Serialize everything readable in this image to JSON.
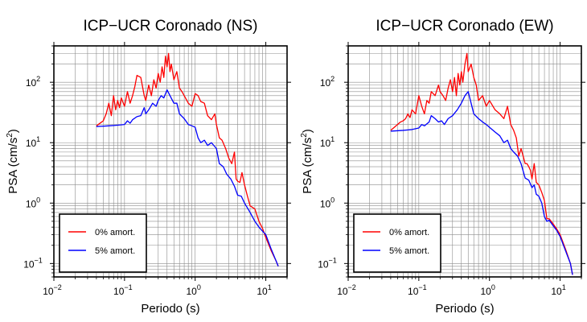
{
  "chart_data": [
    {
      "type": "line",
      "title": "ICP−UCR Coronado (NS)",
      "xlabel": "Periodo (s)",
      "ylabel": "PSA (cm/s²)",
      "xscale": "log",
      "yscale": "log",
      "xlim": [
        0.01,
        20
      ],
      "ylim": [
        0.06,
        400
      ],
      "grid": true,
      "legend_position": "bottom-left",
      "x_ticks": [
        {
          "value": 0.01,
          "base": "10",
          "exp": "−2"
        },
        {
          "value": 0.1,
          "base": "10",
          "exp": "−1"
        },
        {
          "value": 1,
          "base": "10",
          "exp": "0"
        },
        {
          "value": 10,
          "base": "10",
          "exp": "1"
        }
      ],
      "y_ticks": [
        {
          "value": 0.1,
          "label": "10",
          "exp": "−1"
        },
        {
          "value": 1,
          "label": "10",
          "exp": "0"
        },
        {
          "value": 10,
          "label": "10",
          "exp": "1"
        },
        {
          "value": 100,
          "label": "10",
          "exp": "2"
        }
      ],
      "series": [
        {
          "name": "0% amort.",
          "color": "#ff0000",
          "points": [
            [
              0.04,
              19
            ],
            [
              0.045,
              21
            ],
            [
              0.05,
              23
            ],
            [
              0.055,
              30
            ],
            [
              0.06,
              45
            ],
            [
              0.065,
              28
            ],
            [
              0.07,
              60
            ],
            [
              0.075,
              35
            ],
            [
              0.08,
              50
            ],
            [
              0.085,
              38
            ],
            [
              0.09,
              55
            ],
            [
              0.1,
              40
            ],
            [
              0.11,
              70
            ],
            [
              0.12,
              45
            ],
            [
              0.13,
              60
            ],
            [
              0.14,
              85
            ],
            [
              0.15,
              130
            ],
            [
              0.17,
              120
            ],
            [
              0.19,
              60
            ],
            [
              0.2,
              50
            ],
            [
              0.22,
              90
            ],
            [
              0.24,
              60
            ],
            [
              0.26,
              110
            ],
            [
              0.28,
              80
            ],
            [
              0.3,
              140
            ],
            [
              0.32,
              100
            ],
            [
              0.34,
              180
            ],
            [
              0.36,
              120
            ],
            [
              0.38,
              270
            ],
            [
              0.4,
              180
            ],
            [
              0.42,
              300
            ],
            [
              0.44,
              150
            ],
            [
              0.46,
              200
            ],
            [
              0.5,
              110
            ],
            [
              0.55,
              150
            ],
            [
              0.6,
              80
            ],
            [
              0.65,
              70
            ],
            [
              0.7,
              60
            ],
            [
              0.8,
              45
            ],
            [
              0.9,
              40
            ],
            [
              1.0,
              65
            ],
            [
              1.1,
              60
            ],
            [
              1.2,
              48
            ],
            [
              1.35,
              45
            ],
            [
              1.5,
              28
            ],
            [
              1.7,
              24
            ],
            [
              1.9,
              30
            ],
            [
              2.0,
              20
            ],
            [
              2.2,
              12
            ],
            [
              2.4,
              11
            ],
            [
              2.7,
              8
            ],
            [
              3.0,
              5.5
            ],
            [
              3.3,
              4.5
            ],
            [
              3.6,
              7
            ],
            [
              3.8,
              2.5
            ],
            [
              4.0,
              2.3
            ],
            [
              4.3,
              2.2
            ],
            [
              4.6,
              3.2
            ],
            [
              5.0,
              2.0
            ],
            [
              5.5,
              1.3
            ],
            [
              6.0,
              0.9
            ],
            [
              7.0,
              0.8
            ],
            [
              8.0,
              0.5
            ],
            [
              9.0,
              0.38
            ],
            [
              10,
              0.27
            ],
            [
              12,
              0.16
            ],
            [
              14,
              0.11
            ],
            [
              15,
              0.09
            ]
          ]
        },
        {
          "name": "5% amort.",
          "color": "#0000ff",
          "points": [
            [
              0.04,
              18.5
            ],
            [
              0.06,
              19
            ],
            [
              0.08,
              19.5
            ],
            [
              0.1,
              20
            ],
            [
              0.11,
              23
            ],
            [
              0.12,
              21
            ],
            [
              0.13,
              24
            ],
            [
              0.15,
              27
            ],
            [
              0.17,
              28
            ],
            [
              0.19,
              38
            ],
            [
              0.2,
              30
            ],
            [
              0.22,
              35
            ],
            [
              0.25,
              45
            ],
            [
              0.28,
              40
            ],
            [
              0.3,
              50
            ],
            [
              0.33,
              60
            ],
            [
              0.36,
              55
            ],
            [
              0.4,
              75
            ],
            [
              0.44,
              60
            ],
            [
              0.5,
              45
            ],
            [
              0.55,
              45
            ],
            [
              0.6,
              30
            ],
            [
              0.7,
              25
            ],
            [
              0.8,
              20
            ],
            [
              0.9,
              19
            ],
            [
              1.0,
              18
            ],
            [
              1.1,
              12
            ],
            [
              1.2,
              10
            ],
            [
              1.35,
              11
            ],
            [
              1.5,
              9
            ],
            [
              1.7,
              10
            ],
            [
              2.0,
              8
            ],
            [
              2.2,
              4.5
            ],
            [
              2.5,
              4
            ],
            [
              2.8,
              3
            ],
            [
              3.2,
              2.5
            ],
            [
              3.6,
              1.9
            ],
            [
              4.0,
              1.35
            ],
            [
              4.5,
              1.3
            ],
            [
              5.0,
              1.0
            ],
            [
              6.0,
              0.7
            ],
            [
              7.0,
              0.5
            ],
            [
              8.0,
              0.4
            ],
            [
              10,
              0.3
            ],
            [
              12,
              0.17
            ],
            [
              14,
              0.11
            ],
            [
              15,
              0.09
            ]
          ]
        }
      ]
    },
    {
      "type": "line",
      "title": "ICP−UCR Coronado (EW)",
      "xlabel": "Periodo (s)",
      "ylabel": "PSA (cm/s²)",
      "xscale": "log",
      "yscale": "log",
      "xlim": [
        0.01,
        20
      ],
      "ylim": [
        0.06,
        400
      ],
      "grid": true,
      "legend_position": "bottom-left",
      "x_ticks": [
        {
          "value": 0.01,
          "base": "10",
          "exp": "−2"
        },
        {
          "value": 0.1,
          "base": "10",
          "exp": "−1"
        },
        {
          "value": 1,
          "base": "10",
          "exp": "0"
        },
        {
          "value": 10,
          "base": "10",
          "exp": "1"
        }
      ],
      "y_ticks": [
        {
          "value": 0.1,
          "label": "10",
          "exp": "−1"
        },
        {
          "value": 1,
          "label": "10",
          "exp": "0"
        },
        {
          "value": 10,
          "label": "10",
          "exp": "1"
        },
        {
          "value": 100,
          "label": "10",
          "exp": "2"
        }
      ],
      "series": [
        {
          "name": "0% amort.",
          "color": "#ff0000",
          "points": [
            [
              0.04,
              16
            ],
            [
              0.045,
              18
            ],
            [
              0.05,
              20
            ],
            [
              0.055,
              22
            ],
            [
              0.06,
              23
            ],
            [
              0.065,
              25
            ],
            [
              0.07,
              30
            ],
            [
              0.075,
              26
            ],
            [
              0.08,
              35
            ],
            [
              0.09,
              30
            ],
            [
              0.1,
              60
            ],
            [
              0.11,
              40
            ],
            [
              0.12,
              30
            ],
            [
              0.13,
              50
            ],
            [
              0.14,
              45
            ],
            [
              0.15,
              70
            ],
            [
              0.17,
              60
            ],
            [
              0.19,
              90
            ],
            [
              0.2,
              70
            ],
            [
              0.22,
              60
            ],
            [
              0.24,
              50
            ],
            [
              0.26,
              80
            ],
            [
              0.28,
              110
            ],
            [
              0.3,
              70
            ],
            [
              0.32,
              120
            ],
            [
              0.34,
              60
            ],
            [
              0.36,
              140
            ],
            [
              0.38,
              90
            ],
            [
              0.4,
              150
            ],
            [
              0.42,
              100
            ],
            [
              0.45,
              200
            ],
            [
              0.48,
              300
            ],
            [
              0.5,
              150
            ],
            [
              0.55,
              200
            ],
            [
              0.6,
              120
            ],
            [
              0.65,
              90
            ],
            [
              0.7,
              50
            ],
            [
              0.8,
              60
            ],
            [
              0.9,
              40
            ],
            [
              1.0,
              50
            ],
            [
              1.2,
              35
            ],
            [
              1.4,
              30
            ],
            [
              1.6,
              25
            ],
            [
              1.8,
              40
            ],
            [
              2.0,
              20
            ],
            [
              2.2,
              16
            ],
            [
              2.4,
              12
            ],
            [
              2.6,
              6
            ],
            [
              2.8,
              8
            ],
            [
              3.0,
              6
            ],
            [
              3.2,
              4.5
            ],
            [
              3.4,
              4.5
            ],
            [
              3.6,
              4
            ],
            [
              3.8,
              3.5
            ],
            [
              4.0,
              2.5
            ],
            [
              4.3,
              4.5
            ],
            [
              4.6,
              2.2
            ],
            [
              5.0,
              2.0
            ],
            [
              5.5,
              1.5
            ],
            [
              6.0,
              1.1
            ],
            [
              6.5,
              0.55
            ],
            [
              7.0,
              0.55
            ],
            [
              8.0,
              0.45
            ],
            [
              9.0,
              0.37
            ],
            [
              10,
              0.3
            ],
            [
              12,
              0.17
            ],
            [
              14,
              0.1
            ],
            [
              15,
              0.065
            ]
          ]
        },
        {
          "name": "5% amort.",
          "color": "#0000ff",
          "points": [
            [
              0.04,
              15.5
            ],
            [
              0.06,
              16
            ],
            [
              0.08,
              16.5
            ],
            [
              0.1,
              17.5
            ],
            [
              0.11,
              20
            ],
            [
              0.12,
              19
            ],
            [
              0.14,
              22
            ],
            [
              0.15,
              28
            ],
            [
              0.17,
              25
            ],
            [
              0.19,
              22
            ],
            [
              0.21,
              23
            ],
            [
              0.23,
              20
            ],
            [
              0.26,
              25
            ],
            [
              0.3,
              28
            ],
            [
              0.35,
              35
            ],
            [
              0.4,
              45
            ],
            [
              0.45,
              60
            ],
            [
              0.5,
              70
            ],
            [
              0.55,
              45
            ],
            [
              0.6,
              30
            ],
            [
              0.7,
              25
            ],
            [
              0.8,
              22
            ],
            [
              0.9,
              20
            ],
            [
              1.0,
              18
            ],
            [
              1.2,
              15
            ],
            [
              1.4,
              13
            ],
            [
              1.6,
              10
            ],
            [
              1.8,
              11
            ],
            [
              2.0,
              8
            ],
            [
              2.2,
              7
            ],
            [
              2.5,
              6
            ],
            [
              2.8,
              4.5
            ],
            [
              3.2,
              2.6
            ],
            [
              3.6,
              2.4
            ],
            [
              4.0,
              1.8
            ],
            [
              4.3,
              2.0
            ],
            [
              4.6,
              1.4
            ],
            [
              5.0,
              1.3
            ],
            [
              5.5,
              1.0
            ],
            [
              6.0,
              0.6
            ],
            [
              6.5,
              0.5
            ],
            [
              7.0,
              0.52
            ],
            [
              8.0,
              0.42
            ],
            [
              9.0,
              0.35
            ],
            [
              10,
              0.28
            ],
            [
              12,
              0.16
            ],
            [
              14,
              0.1
            ],
            [
              15,
              0.065
            ]
          ]
        }
      ]
    }
  ]
}
